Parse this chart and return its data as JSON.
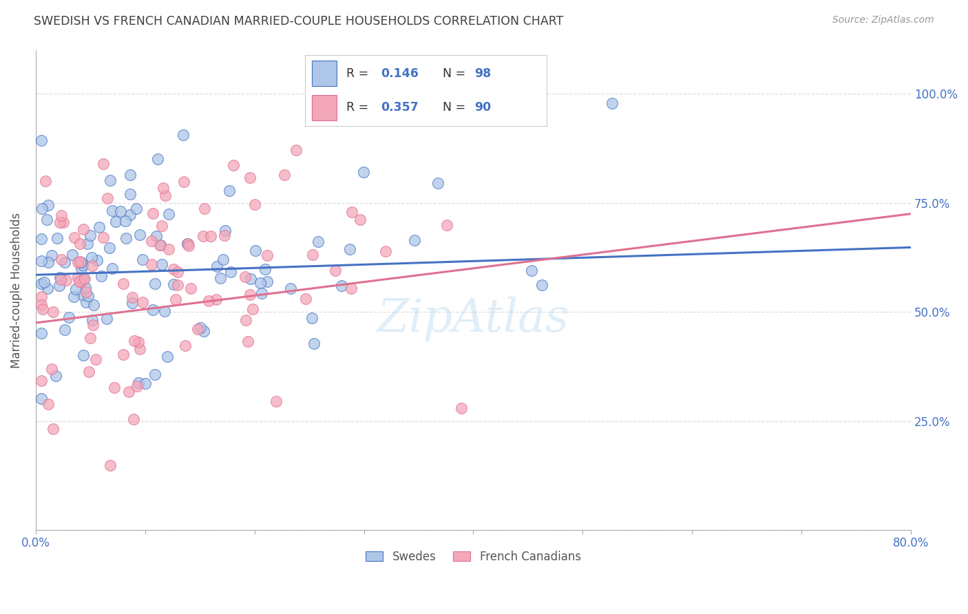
{
  "title": "SWEDISH VS FRENCH CANADIAN MARRIED-COUPLE HOUSEHOLDS CORRELATION CHART",
  "source": "Source: ZipAtlas.com",
  "ylabel": "Married-couple Households",
  "ytick_labels": [
    "",
    "25.0%",
    "50.0%",
    "75.0%",
    "100.0%"
  ],
  "yticks": [
    0.0,
    0.25,
    0.5,
    0.75,
    1.0
  ],
  "legend_label_swedes": "Swedes",
  "legend_label_french": "French Canadians",
  "R_swedes": 0.146,
  "N_swedes": 98,
  "R_french": 0.357,
  "N_french": 90,
  "swedes_color": "#aec6e8",
  "french_color": "#f4a7b9",
  "swedes_line_color": "#4472c4",
  "french_line_color": "#e07090",
  "background_color": "#ffffff",
  "grid_color": "#dddddd",
  "title_color": "#404040",
  "axis_label_color": "#4472c4",
  "xmin": 0.0,
  "xmax": 0.8,
  "ymin": 0.0,
  "ymax": 1.1
}
